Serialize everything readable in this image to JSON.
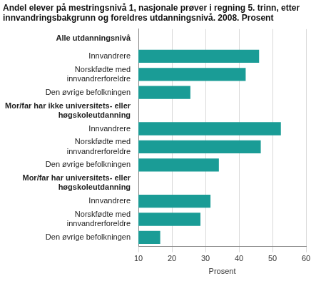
{
  "chart_data": {
    "type": "bar",
    "orientation": "horizontal",
    "title": "Andel elever på mestringsnivå 1, nasjonale prøver i regning 5. trinn, etter innvandringsbakgrunn og foreldres utdanningsnivå. 2008. Prosent",
    "x_label": "Prosent",
    "categories": [
      "Alle utdanningsnivå",
      "Innvandrere",
      "Norskfødte med innvandrerforeldre",
      "Den øvrige befolkningen",
      "Mor/far har ikke universitets- eller høgskoleutdanning",
      "Innvandrere",
      "Norskfødte med innvandrerforeldre",
      "Den øvrige befolkningen",
      "Mor/far har universitets- eller høgskoleutdanning",
      "Innvandrere",
      "Norskfødte med innvandrerforeldre",
      "Den øvrige befolkningen"
    ],
    "values": [
      null,
      46,
      42,
      25.5,
      null,
      52.5,
      46.5,
      34,
      null,
      31.5,
      28.5,
      16.5
    ],
    "color": "#1a9c96",
    "xlim": [
      10,
      60
    ],
    "xticks": [
      10,
      20,
      30,
      40,
      50,
      60
    ],
    "grid": true
  }
}
